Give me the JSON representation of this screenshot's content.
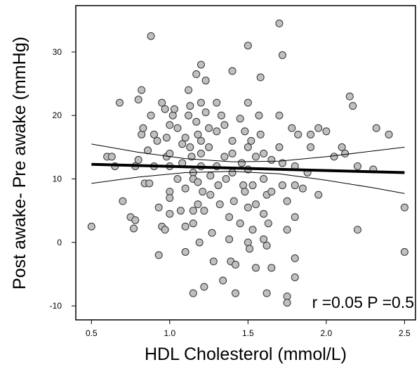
{
  "chart_data": {
    "type": "scatter",
    "x_label": "HDL Cholesterol (mmol/L)",
    "y_label": "Post awake- Pre awake (mmHg)",
    "annotation": "r =0.05 P =0.5",
    "xlim": [
      0.4,
      2.57
    ],
    "ylim": [
      -12.2,
      37.3
    ],
    "xticks": [
      0.5,
      {
        "value": 1,
        "label": "1.0"
      },
      1.5,
      {
        "value": 2,
        "label": "2.0"
      },
      2.5
    ],
    "yticks": [
      -10,
      0,
      10,
      20,
      30
    ],
    "color": "#c0c0c0",
    "x": [
      0.5,
      0.6,
      0.63,
      0.68,
      0.65,
      0.7,
      0.75,
      0.77,
      0.78,
      0.78,
      0.8,
      0.82,
      0.8,
      0.82,
      0.83,
      0.84,
      0.86,
      0.87,
      0.88,
      0.88,
      0.9,
      0.9,
      0.92,
      0.93,
      0.93,
      0.95,
      0.95,
      0.97,
      0.97,
      0.98,
      0.98,
      1.0,
      1.0,
      1.0,
      1.0,
      1.0,
      1.0,
      1.02,
      1.03,
      1.05,
      1.05,
      1.07,
      1.08,
      1.08,
      1.1,
      1.1,
      1.1,
      1.1,
      1.12,
      1.12,
      1.13,
      1.13,
      1.14,
      1.15,
      1.15,
      1.15,
      1.15,
      1.15,
      1.17,
      1.17,
      1.18,
      1.18,
      1.18,
      1.19,
      1.2,
      1.2,
      1.2,
      1.2,
      1.2,
      1.21,
      1.22,
      1.22,
      1.23,
      1.23,
      1.25,
      1.25,
      1.26,
      1.26,
      1.27,
      1.28,
      1.3,
      1.3,
      1.3,
      1.31,
      1.32,
      1.33,
      1.34,
      1.35,
      1.35,
      1.36,
      1.38,
      1.38,
      1.39,
      1.4,
      1.4,
      1.4,
      1.4,
      1.41,
      1.42,
      1.42,
      1.45,
      1.45,
      1.46,
      1.47,
      1.48,
      1.48,
      1.5,
      1.5,
      1.5,
      1.5,
      1.5,
      1.5,
      1.51,
      1.52,
      1.53,
      1.53,
      1.55,
      1.55,
      1.55,
      1.57,
      1.58,
      1.58,
      1.6,
      1.6,
      1.6,
      1.6,
      1.62,
      1.62,
      1.63,
      1.65,
      1.65,
      1.65,
      1.7,
      1.7,
      1.7,
      1.72,
      1.72,
      1.72,
      1.75,
      1.75,
      1.75,
      1.78,
      1.8,
      1.8,
      1.8,
      1.8,
      1.8,
      1.82,
      1.85,
      1.88,
      1.9,
      1.9,
      1.95,
      1.95,
      2.0,
      2.05,
      2.1,
      2.12,
      2.15,
      2.17,
      2.2,
      2.2,
      2.3,
      2.32,
      2.4,
      2.5,
      2.5,
      1.62,
      1.75
    ],
    "values": [
      2.5,
      13.5,
      13.5,
      22,
      12,
      6.5,
      4,
      2.2,
      3.5,
      12,
      22.5,
      24,
      13,
      17,
      18,
      9.3,
      14.5,
      9.3,
      32.5,
      20,
      17,
      12,
      16,
      5.5,
      -2,
      22,
      2.5,
      2,
      21,
      16.5,
      13.5,
      18.5,
      14,
      12,
      8,
      7,
      4.5,
      20,
      21,
      18,
      10,
      5,
      15.5,
      12.5,
      16.5,
      8.5,
      2.5,
      -1.5,
      24,
      20,
      21.5,
      15,
      13.5,
      11,
      10,
      5,
      3,
      -8,
      26.5,
      19,
      17,
      9.5,
      6,
      0,
      28,
      22,
      16,
      14,
      12,
      8,
      5,
      -7,
      25.5,
      20.5,
      18,
      15,
      10.5,
      7.5,
      1.5,
      -3,
      22,
      17.5,
      12,
      9,
      6,
      20,
      -6,
      18.5,
      13.5,
      10,
      4,
      0.5,
      -3,
      27,
      16,
      14,
      11,
      6.5,
      -3.5,
      -8,
      19.5,
      3,
      12.5,
      9,
      17.5,
      8,
      31,
      22,
      15,
      11.5,
      5.5,
      0,
      -1,
      16,
      9,
      2,
      13.5,
      6,
      -4,
      20,
      26,
      17,
      14,
      10,
      4.5,
      0.5,
      -0.5,
      7.5,
      3,
      13,
      8,
      -4,
      34.5,
      20,
      15,
      29.5,
      12.5,
      9,
      6.5,
      2,
      -8.5,
      18,
      12,
      9,
      4,
      -5.5,
      -2.5,
      17,
      8.5,
      11,
      17,
      15,
      18,
      7.5,
      17.5,
      13.5,
      15,
      14,
      23,
      21.5,
      12,
      2,
      11.5,
      18,
      17,
      5.5,
      -1.5,
      -8,
      -9.5
    ],
    "lines": [
      {
        "x": [
          0.5,
          0.8,
          1.1,
          1.4,
          1.7,
          2.0,
          2.3,
          2.5
        ],
        "values": [
          15.5,
          14.2,
          13.2,
          12.7,
          12.8,
          13.5,
          14.4,
          15.0
        ],
        "color": "#000000",
        "width": 1
      },
      {
        "x": [
          0.5,
          0.8,
          1.1,
          1.4,
          1.7,
          2.0,
          2.3,
          2.5
        ],
        "values": [
          9.3,
          10.3,
          11.0,
          11.2,
          10.8,
          9.8,
          8.6,
          7.7
        ],
        "color": "#000000",
        "width": 1
      },
      {
        "x": [
          0.5,
          2.5
        ],
        "values": [
          12.3,
          11.0
        ],
        "color": "#000000",
        "width": 4
      }
    ]
  }
}
